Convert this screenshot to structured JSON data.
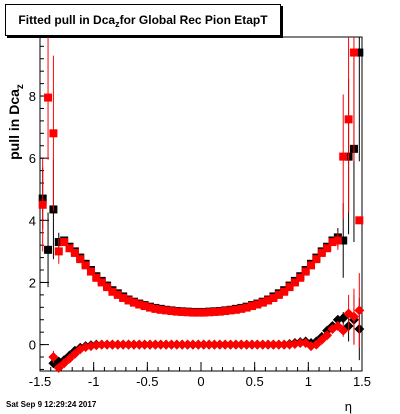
{
  "title": {
    "main": "Fitted pull in Dca",
    "sub": "z",
    "rest": " for Global Rec Pion EtapT"
  },
  "footer": {
    "timestamp": "Sat Sep  9 12:29:24 2017"
  },
  "colors": {
    "series_black": "#000000",
    "series_red": "#ff0000",
    "axis": "#000000"
  },
  "chart_data": {
    "type": "scatter",
    "title": "Fitted pull in Dca_z for Global Rec Pion EtapT",
    "xlabel": "η",
    "ylabel": "pull in Dca_z",
    "xlim": [
      -1.5,
      1.5
    ],
    "ylim": [
      -0.85,
      9.9
    ],
    "x_ticks": [
      "-1.5",
      "-1",
      "-0.5",
      "0",
      "0.5",
      "1",
      "1.5"
    ],
    "y_ticks": [
      "0",
      "2",
      "4",
      "6",
      "8"
    ],
    "grid": false,
    "series": [
      {
        "marker": "square",
        "color": "#000000",
        "x": [
          -1.475,
          -1.425,
          -1.375,
          -1.325,
          -1.275,
          -1.225,
          -1.175,
          -1.125,
          -1.075,
          -1.025,
          -0.975,
          -0.925,
          -0.875,
          -0.825,
          -0.775,
          -0.725,
          -0.675,
          -0.625,
          -0.575,
          -0.525,
          -0.475,
          -0.425,
          -0.375,
          -0.325,
          -0.275,
          -0.225,
          -0.175,
          -0.125,
          -0.075,
          -0.025,
          0.025,
          0.075,
          0.125,
          0.175,
          0.225,
          0.275,
          0.325,
          0.375,
          0.425,
          0.475,
          0.525,
          0.575,
          0.625,
          0.675,
          0.725,
          0.775,
          0.825,
          0.875,
          0.925,
          0.975,
          1.025,
          1.075,
          1.125,
          1.175,
          1.225,
          1.275,
          1.325,
          1.375,
          1.425,
          1.475
        ],
        "y": [
          4.7,
          3.05,
          4.35,
          3.3,
          3.35,
          3.15,
          3.0,
          2.8,
          2.6,
          2.4,
          2.2,
          2.05,
          1.9,
          1.75,
          1.65,
          1.55,
          1.45,
          1.38,
          1.32,
          1.27,
          1.22,
          1.18,
          1.15,
          1.12,
          1.1,
          1.08,
          1.07,
          1.06,
          1.05,
          1.05,
          1.05,
          1.06,
          1.07,
          1.08,
          1.1,
          1.12,
          1.15,
          1.18,
          1.22,
          1.27,
          1.32,
          1.38,
          1.45,
          1.55,
          1.65,
          1.75,
          1.9,
          2.05,
          2.2,
          2.4,
          2.6,
          2.8,
          3.0,
          3.15,
          3.35,
          3.45,
          3.35,
          6.05,
          6.3,
          9.4
        ],
        "yerr": [
          1.0,
          1.2,
          1.6,
          0.3,
          0.1,
          0.08,
          0.06,
          0.05,
          0.04,
          0.04,
          0.03,
          0.03,
          0.03,
          0.02,
          0.02,
          0.02,
          0.02,
          0.02,
          0.02,
          0.02,
          0.02,
          0.02,
          0.02,
          0.02,
          0.02,
          0.02,
          0.02,
          0.02,
          0.02,
          0.02,
          0.02,
          0.02,
          0.02,
          0.02,
          0.02,
          0.02,
          0.02,
          0.02,
          0.02,
          0.02,
          0.02,
          0.02,
          0.02,
          0.02,
          0.02,
          0.02,
          0.03,
          0.03,
          0.03,
          0.04,
          0.04,
          0.05,
          0.06,
          0.08,
          0.1,
          0.3,
          1.2,
          2.5,
          3.0,
          3.5
        ]
      },
      {
        "marker": "square",
        "color": "#ff0000",
        "x": [
          -1.475,
          -1.425,
          -1.375,
          -1.325,
          -1.275,
          -1.225,
          -1.175,
          -1.125,
          -1.075,
          -1.025,
          -0.975,
          -0.925,
          -0.875,
          -0.825,
          -0.775,
          -0.725,
          -0.675,
          -0.625,
          -0.575,
          -0.525,
          -0.475,
          -0.425,
          -0.375,
          -0.325,
          -0.275,
          -0.225,
          -0.175,
          -0.125,
          -0.075,
          -0.025,
          0.025,
          0.075,
          0.125,
          0.175,
          0.225,
          0.275,
          0.325,
          0.375,
          0.425,
          0.475,
          0.525,
          0.575,
          0.625,
          0.675,
          0.725,
          0.775,
          0.825,
          0.875,
          0.925,
          0.975,
          1.025,
          1.075,
          1.125,
          1.175,
          1.225,
          1.275,
          1.325,
          1.375,
          1.425,
          1.475
        ],
        "y": [
          4.5,
          7.95,
          6.8,
          3.0,
          3.3,
          3.1,
          2.95,
          2.75,
          2.55,
          2.35,
          2.15,
          2.0,
          1.85,
          1.7,
          1.6,
          1.5,
          1.42,
          1.35,
          1.29,
          1.24,
          1.19,
          1.15,
          1.12,
          1.1,
          1.08,
          1.06,
          1.05,
          1.04,
          1.03,
          1.03,
          1.03,
          1.04,
          1.05,
          1.06,
          1.08,
          1.1,
          1.12,
          1.15,
          1.19,
          1.24,
          1.29,
          1.35,
          1.42,
          1.5,
          1.6,
          1.7,
          1.85,
          2.0,
          2.15,
          2.35,
          2.55,
          2.75,
          2.95,
          3.1,
          3.3,
          3.35,
          6.05,
          7.25,
          9.4,
          4.0
        ],
        "yerr": [
          1.5,
          2.0,
          2.5,
          0.4,
          0.1,
          0.08,
          0.06,
          0.05,
          0.04,
          0.04,
          0.03,
          0.03,
          0.03,
          0.02,
          0.02,
          0.02,
          0.02,
          0.02,
          0.02,
          0.02,
          0.02,
          0.02,
          0.02,
          0.02,
          0.02,
          0.02,
          0.02,
          0.02,
          0.02,
          0.02,
          0.02,
          0.02,
          0.02,
          0.02,
          0.02,
          0.02,
          0.02,
          0.02,
          0.02,
          0.02,
          0.02,
          0.02,
          0.02,
          0.02,
          0.02,
          0.02,
          0.03,
          0.03,
          0.03,
          0.04,
          0.04,
          0.05,
          0.06,
          0.08,
          0.1,
          0.3,
          2.0,
          3.0,
          3.5,
          0.0
        ]
      },
      {
        "marker": "diamond",
        "color": "#000000",
        "x": [
          -1.375,
          -1.325,
          -1.275,
          -1.225,
          -1.175,
          -1.125,
          -1.075,
          -1.025,
          -0.975,
          -0.925,
          -0.875,
          -0.825,
          -0.775,
          -0.725,
          -0.675,
          -0.625,
          -0.575,
          -0.525,
          -0.475,
          -0.425,
          -0.375,
          -0.325,
          -0.275,
          -0.225,
          -0.175,
          -0.125,
          -0.075,
          -0.025,
          0.025,
          0.075,
          0.125,
          0.175,
          0.225,
          0.275,
          0.325,
          0.375,
          0.425,
          0.475,
          0.525,
          0.575,
          0.625,
          0.675,
          0.725,
          0.775,
          0.825,
          0.875,
          0.925,
          0.975,
          1.025,
          1.075,
          1.125,
          1.175,
          1.225,
          1.275,
          1.325,
          1.375,
          1.425,
          1.475
        ],
        "y": [
          -0.6,
          -0.55,
          -0.5,
          -0.35,
          -0.2,
          -0.1,
          -0.05,
          -0.02,
          0.0,
          0.0,
          0.0,
          0.0,
          0.0,
          0.0,
          0.0,
          0.0,
          0.0,
          0.0,
          0.0,
          0.0,
          0.0,
          0.0,
          0.0,
          0.0,
          0.0,
          0.0,
          0.0,
          0.0,
          0.0,
          0.0,
          0.0,
          0.0,
          0.0,
          0.0,
          0.0,
          0.0,
          0.0,
          0.0,
          0.0,
          0.0,
          0.0,
          0.0,
          0.0,
          0.0,
          0.02,
          0.05,
          0.08,
          0.1,
          0.05,
          0.1,
          0.25,
          0.45,
          0.6,
          0.8,
          0.85,
          0.6,
          0.8,
          0.5
        ],
        "yerr": [
          0.1,
          0.1,
          0.05,
          0.05,
          0.04,
          0.03,
          0.03,
          0.02,
          0.02,
          0.02,
          0.02,
          0.02,
          0.02,
          0.02,
          0.02,
          0.02,
          0.02,
          0.02,
          0.02,
          0.02,
          0.02,
          0.02,
          0.02,
          0.02,
          0.02,
          0.02,
          0.02,
          0.02,
          0.02,
          0.02,
          0.02,
          0.02,
          0.02,
          0.02,
          0.02,
          0.02,
          0.02,
          0.02,
          0.02,
          0.02,
          0.02,
          0.02,
          0.02,
          0.02,
          0.02,
          0.02,
          0.02,
          0.02,
          0.02,
          0.03,
          0.04,
          0.05,
          0.06,
          0.1,
          0.2,
          0.5,
          0.8,
          1.0
        ]
      },
      {
        "marker": "diamond",
        "color": "#ff0000",
        "x": [
          -1.375,
          -1.325,
          -1.275,
          -1.225,
          -1.175,
          -1.125,
          -1.075,
          -1.025,
          -0.975,
          -0.925,
          -0.875,
          -0.825,
          -0.775,
          -0.725,
          -0.675,
          -0.625,
          -0.575,
          -0.525,
          -0.475,
          -0.425,
          -0.375,
          -0.325,
          -0.275,
          -0.225,
          -0.175,
          -0.125,
          -0.075,
          -0.025,
          0.025,
          0.075,
          0.125,
          0.175,
          0.225,
          0.275,
          0.325,
          0.375,
          0.425,
          0.475,
          0.525,
          0.575,
          0.625,
          0.675,
          0.725,
          0.775,
          0.825,
          0.875,
          0.925,
          0.975,
          1.025,
          1.075,
          1.125,
          1.175,
          1.225,
          1.275,
          1.325,
          1.375,
          1.425,
          1.475
        ],
        "y": [
          -0.4,
          -0.75,
          -0.6,
          -0.45,
          -0.3,
          -0.15,
          -0.08,
          -0.05,
          -0.02,
          0.0,
          0.0,
          0.0,
          0.0,
          0.0,
          0.0,
          0.0,
          0.0,
          0.0,
          0.0,
          0.0,
          0.0,
          0.0,
          0.0,
          0.0,
          0.0,
          0.0,
          0.0,
          0.0,
          0.0,
          0.0,
          0.0,
          0.0,
          0.0,
          0.0,
          0.0,
          0.0,
          0.0,
          0.0,
          0.0,
          0.0,
          0.0,
          0.0,
          0.0,
          0.0,
          0.0,
          0.02,
          0.05,
          0.05,
          -0.05,
          0.0,
          0.15,
          0.3,
          0.5,
          0.6,
          0.45,
          1.0,
          0.9,
          1.1
        ],
        "yerr": [
          0.2,
          0.1,
          0.05,
          0.05,
          0.04,
          0.03,
          0.03,
          0.02,
          0.02,
          0.02,
          0.02,
          0.02,
          0.02,
          0.02,
          0.02,
          0.02,
          0.02,
          0.02,
          0.02,
          0.02,
          0.02,
          0.02,
          0.02,
          0.02,
          0.02,
          0.02,
          0.02,
          0.02,
          0.02,
          0.02,
          0.02,
          0.02,
          0.02,
          0.02,
          0.02,
          0.02,
          0.02,
          0.02,
          0.02,
          0.02,
          0.02,
          0.02,
          0.02,
          0.02,
          0.02,
          0.02,
          0.02,
          0.02,
          0.02,
          0.03,
          0.04,
          0.05,
          0.06,
          0.1,
          0.2,
          0.6,
          0.9,
          1.2
        ]
      }
    ]
  }
}
